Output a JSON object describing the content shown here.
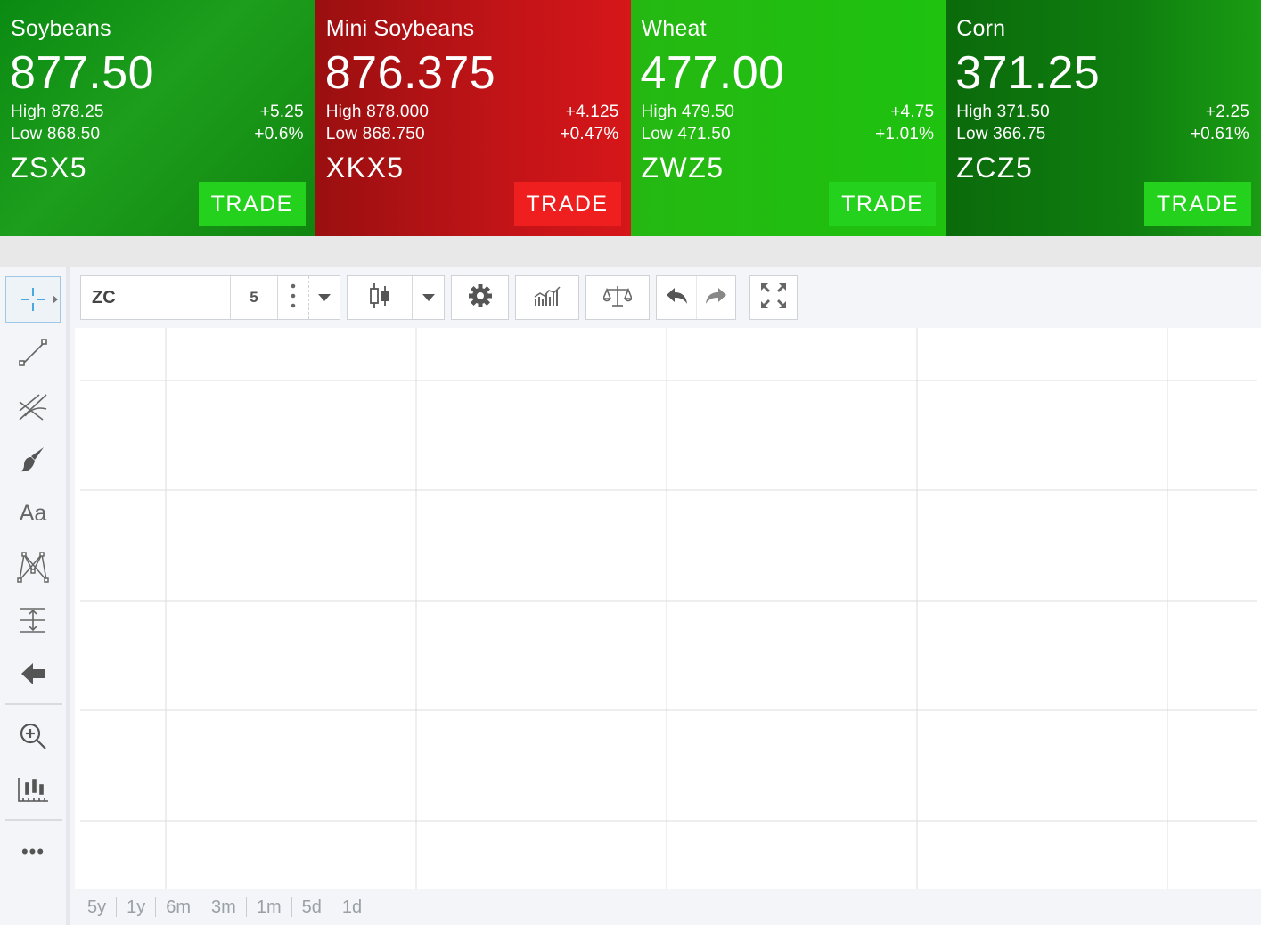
{
  "tiles": [
    {
      "name": "Soybeans",
      "price": "877.50",
      "high": "High 878.25",
      "low": "Low 868.50",
      "change": "+5.25",
      "pct": "+0.6%",
      "symbol": "ZSX5",
      "trade": "TRADE",
      "direction": "up",
      "color": "#10850f"
    },
    {
      "name": "Mini Soybeans",
      "price": "876.375",
      "high": "High 878.000",
      "low": "Low 868.750",
      "change": "+4.125",
      "pct": "+0.47%",
      "symbol": "XKX5",
      "trade": "TRADE",
      "direction": "up",
      "color": "#c21418"
    },
    {
      "name": "Wheat",
      "price": "477.00",
      "high": "High 479.50",
      "low": "Low 471.50",
      "change": "+4.75",
      "pct": "+1.01%",
      "symbol": "ZWZ5",
      "trade": "TRADE",
      "direction": "up",
      "color": "#1ec20f"
    },
    {
      "name": "Corn",
      "price": "371.25",
      "high": "High 371.50",
      "low": "Low 366.75",
      "change": "+2.25",
      "pct": "+0.61%",
      "symbol": "ZCZ5",
      "trade": "TRADE",
      "direction": "up",
      "color": "#0f7f0f"
    }
  ],
  "toolbar": {
    "symbol_value": "ZC",
    "interval": "5",
    "icons": [
      "crosshair-icon",
      "chevron-down-icon",
      "candlestick-icon",
      "gear-icon",
      "indicators-icon",
      "compare-scale-icon",
      "undo-icon",
      "redo-icon",
      "fullscreen-icon"
    ]
  },
  "left_tools": [
    "crosshair-icon",
    "trendline-icon",
    "fibonacci-icon",
    "brush-icon",
    "text-icon",
    "pattern-icon",
    "measure-icon",
    "arrow-icon",
    "zoom-in-icon",
    "chart-scale-icon",
    "more-icon"
  ],
  "left_text_tool": "Aa",
  "more_label": "•••",
  "ranges": [
    "5y",
    "1y",
    "6m",
    "3m",
    "1m",
    "5d",
    "1d"
  ]
}
